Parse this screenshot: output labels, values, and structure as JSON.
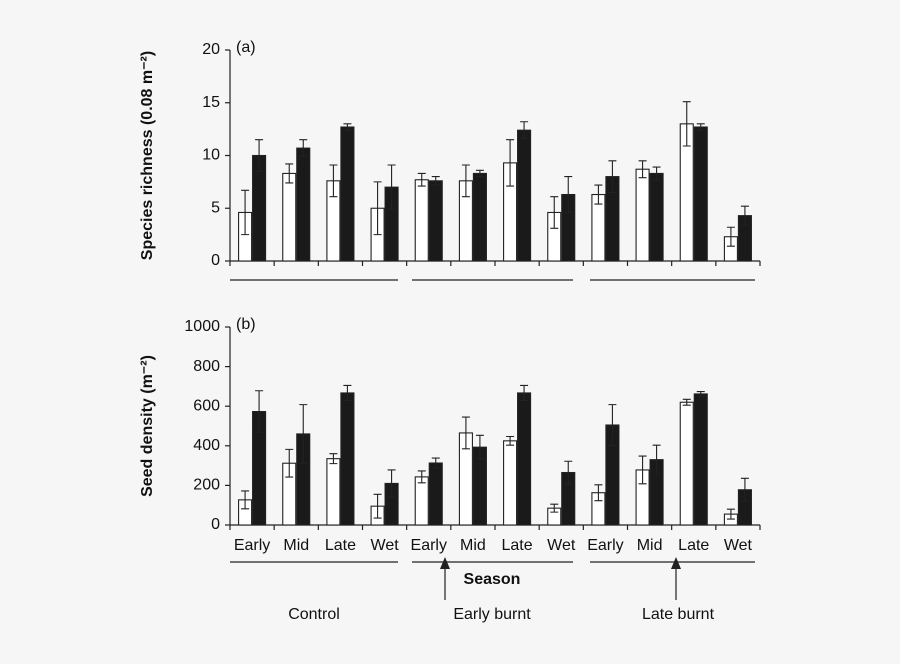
{
  "chart_data": [
    {
      "type": "bar",
      "title": "(a)",
      "ylabel": "Species richness (0.08 m⁻²)",
      "categories": [
        null,
        null,
        null,
        null,
        null,
        null,
        null,
        null,
        null,
        null,
        null,
        null
      ],
      "series": [
        {
          "color": "#ffffff",
          "values": [
            4.6,
            8.3,
            7.6,
            5.0,
            7.7,
            7.6,
            9.3,
            4.6,
            6.3,
            8.7,
            13.0,
            2.3
          ],
          "errors": [
            2.1,
            0.9,
            1.5,
            2.5,
            0.6,
            1.5,
            2.2,
            1.5,
            0.9,
            0.8,
            2.1,
            0.9
          ]
        },
        {
          "color": "#1a1a1a",
          "values": [
            10.0,
            10.7,
            12.7,
            7.0,
            7.6,
            8.3,
            12.4,
            6.3,
            8.0,
            8.3,
            12.7,
            4.3
          ],
          "errors": [
            1.5,
            0.8,
            0.3,
            2.1,
            0.4,
            0.3,
            0.8,
            1.7,
            1.5,
            0.6,
            0.3,
            0.9
          ]
        }
      ],
      "ylim": [
        0,
        20
      ],
      "yticks": [
        0,
        5,
        10,
        15,
        20
      ]
    },
    {
      "type": "bar",
      "title": "(b)",
      "ylabel": "Seed density (m⁻²)",
      "xlabel": "Season",
      "categories": [
        "Early",
        "Mid",
        "Late",
        "Wet",
        "Early",
        "Mid",
        "Late",
        "Wet",
        "Early",
        "Mid",
        "Late",
        "Wet"
      ],
      "groups": [
        "Control",
        "Early burnt",
        "Late burnt"
      ],
      "series": [
        {
          "color": "#ffffff",
          "values": [
            127,
            312,
            335,
            95,
            243,
            465,
            425,
            85,
            163,
            278,
            620,
            55
          ],
          "errors": [
            45,
            70,
            25,
            60,
            30,
            80,
            22,
            20,
            40,
            70,
            15,
            25
          ]
        },
        {
          "color": "#1a1a1a",
          "values": [
            573,
            460,
            667,
            210,
            313,
            393,
            667,
            265,
            505,
            330,
            662,
            178
          ],
          "errors": [
            105,
            148,
            38,
            68,
            25,
            60,
            38,
            57,
            103,
            73,
            12,
            58
          ]
        }
      ],
      "ylim": [
        0,
        1000
      ],
      "yticks": [
        0,
        200,
        400,
        600,
        800,
        1000
      ]
    }
  ]
}
